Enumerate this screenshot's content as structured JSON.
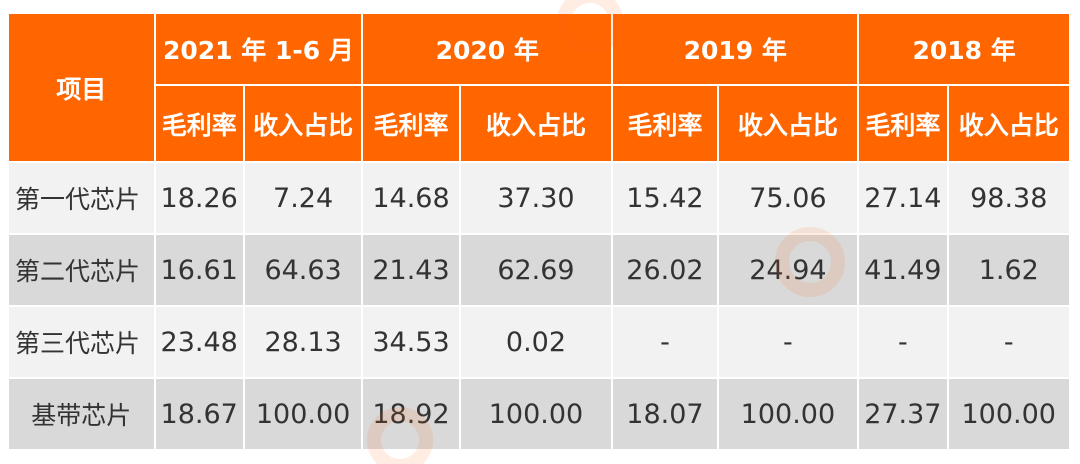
{
  "chart_data": {
    "type": "table",
    "corner_label": "项目",
    "periods": [
      "2021 年 1-6 月",
      "2020 年",
      "2019 年",
      "2018 年"
    ],
    "sub_headers": [
      "毛利率",
      "收入占比"
    ],
    "rows": [
      {
        "label": "第一代芯片",
        "values": [
          "18.26",
          "7.24",
          "14.68",
          "37.30",
          "15.42",
          "75.06",
          "27.14",
          "98.38"
        ]
      },
      {
        "label": "第二代芯片",
        "values": [
          "16.61",
          "64.63",
          "21.43",
          "62.69",
          "26.02",
          "24.94",
          "41.49",
          "1.62"
        ]
      },
      {
        "label": "第三代芯片",
        "values": [
          "23.48",
          "28.13",
          "34.53",
          "0.02",
          "-",
          "-",
          "-",
          "-"
        ]
      },
      {
        "label": "基带芯片",
        "values": [
          "18.67",
          "100.00",
          "18.92",
          "100.00",
          "18.07",
          "100.00",
          "27.37",
          "100.00"
        ]
      }
    ]
  },
  "colors": {
    "header_bg": "#ff6600",
    "header_text": "#ffffff",
    "row_light": "#f2f2f2",
    "row_dark": "#d9d9d9"
  }
}
